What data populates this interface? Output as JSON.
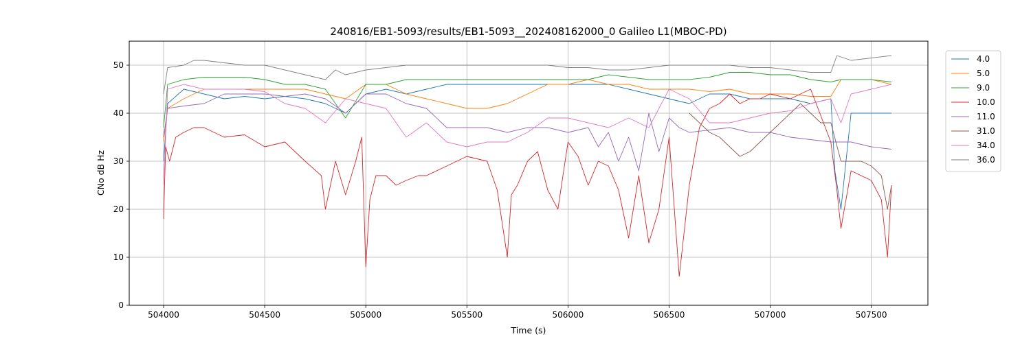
{
  "chart_data": {
    "type": "line",
    "title": "240816/EB1-5093/results/EB1-5093__202408162000_0 Galileo L1(MBOC-PD)",
    "xlabel": "Time (s)",
    "ylabel": "CNo dB Hz",
    "xlim": [
      503830,
      507780
    ],
    "ylim": [
      0,
      55
    ],
    "xticks": [
      504000,
      504500,
      505000,
      505500,
      506000,
      506500,
      507000,
      507500
    ],
    "yticks": [
      0,
      10,
      20,
      30,
      40,
      50
    ],
    "grid": true,
    "legend_position": "upper-right-outside",
    "series": [
      {
        "name": "4.0",
        "color": "#1f77b4",
        "x": [
          504000,
          504020,
          504100,
          504200,
          504300,
          504400,
          504500,
          504600,
          504700,
          504800,
          504900,
          505000,
          505100,
          505200,
          505300,
          505400,
          505500,
          505600,
          505700,
          505800,
          505900,
          506000,
          506100,
          506200,
          506300,
          506400,
          506500,
          506600,
          506700,
          506800,
          506900,
          507000,
          507100,
          507200,
          507300,
          507320,
          507350,
          507400,
          507500,
          507600
        ],
        "y": [
          30,
          42,
          45,
          44,
          43,
          43.5,
          43,
          43.5,
          43,
          42,
          40,
          44,
          45,
          44,
          45,
          46,
          46,
          46,
          46,
          46,
          46,
          46,
          46,
          46,
          45,
          44,
          43,
          42,
          44,
          44,
          43,
          43,
          43,
          42,
          43,
          28,
          20,
          40,
          40,
          40
        ]
      },
      {
        "name": "5.0",
        "color": "#ff7f0e",
        "x": [
          504000,
          504020,
          504100,
          504200,
          504300,
          504400,
          504500,
          504600,
          504700,
          504800,
          504900,
          505000,
          505100,
          505200,
          505300,
          505400,
          505500,
          505600,
          505700,
          505800,
          505900,
          506000,
          506100,
          506200,
          506300,
          506400,
          506500,
          506600,
          506700,
          506800,
          506900,
          507000,
          507100,
          507200,
          507300,
          507350,
          507400,
          507500,
          507600
        ],
        "y": [
          34,
          41,
          43,
          45,
          45,
          45,
          45,
          45,
          45,
          44,
          43,
          46,
          46,
          44,
          43,
          42,
          41,
          41,
          42,
          44,
          46,
          46,
          47,
          46,
          46,
          45,
          45,
          45,
          44.5,
          45,
          44,
          44,
          44,
          43.5,
          43.5,
          47,
          47,
          47,
          46
        ]
      },
      {
        "name": "9.0",
        "color": "#2ca02c",
        "x": [
          504000,
          504020,
          504100,
          504200,
          504300,
          504400,
          504500,
          504600,
          504700,
          504800,
          504900,
          505000,
          505100,
          505200,
          505300,
          505400,
          505500,
          505600,
          505700,
          505800,
          505900,
          506000,
          506100,
          506200,
          506300,
          506400,
          506500,
          506600,
          506700,
          506800,
          506900,
          507000,
          507100,
          507200,
          507300,
          507350,
          507400,
          507500,
          507600
        ],
        "y": [
          37,
          46,
          47,
          47.5,
          47.5,
          47.5,
          47,
          46,
          46,
          45,
          39,
          46,
          46,
          47,
          47,
          47,
          47,
          47,
          47,
          47,
          47,
          47,
          47,
          48,
          47.5,
          47,
          47,
          47,
          47.5,
          48.5,
          48.5,
          48,
          48,
          47,
          46.5,
          47,
          47,
          47,
          46.5
        ]
      },
      {
        "name": "10.0",
        "color": "#d62728",
        "x": [
          504000,
          504010,
          504030,
          504060,
          504100,
          504150,
          504200,
          504300,
          504400,
          504500,
          504600,
          504700,
          504780,
          504800,
          504850,
          504900,
          504950,
          504980,
          505000,
          505020,
          505050,
          505100,
          505150,
          505200,
          505260,
          505300,
          505400,
          505500,
          505600,
          505650,
          505700,
          505720,
          505750,
          505800,
          505850,
          505900,
          505950,
          506000,
          506050,
          506100,
          506150,
          506200,
          506250,
          506300,
          506350,
          506400,
          506450,
          506500,
          506550,
          506600,
          506650,
          506700,
          506750,
          506800,
          506850,
          506900,
          506950,
          507000,
          507100,
          507200,
          507300,
          507330,
          507350,
          507400,
          507500,
          507550,
          507580,
          507600
        ],
        "y": [
          18,
          33,
          30,
          35,
          36,
          37,
          37,
          35,
          35.5,
          33,
          34,
          30,
          27,
          20,
          30,
          23,
          30,
          35,
          8,
          22,
          27,
          27,
          25,
          26,
          27,
          27,
          29,
          31,
          30,
          24,
          10,
          23,
          25,
          30,
          32,
          24,
          20,
          34,
          31,
          25,
          30,
          29,
          24,
          14,
          27,
          13,
          20,
          35,
          6,
          25,
          37,
          41,
          42,
          44,
          42,
          43,
          43,
          44,
          43,
          45,
          34,
          24,
          16,
          28,
          26,
          22,
          10,
          25
        ]
      },
      {
        "name": "11.0",
        "color": "#9467bd",
        "x": [
          504000,
          504020,
          504100,
          504200,
          504300,
          504400,
          504500,
          504600,
          504700,
          504800,
          504900,
          505000,
          505100,
          505200,
          505300,
          505400,
          505500,
          505600,
          505700,
          505800,
          505900,
          506000,
          506100,
          506150,
          506200,
          506250,
          506300,
          506350,
          506400,
          506450,
          506500,
          506550,
          506600,
          506700,
          506800,
          506900,
          507000,
          507100,
          507200,
          507300,
          507400,
          507500,
          507600
        ],
        "y": [
          35,
          41,
          41.5,
          42,
          44,
          44,
          44,
          43.5,
          44,
          43,
          40,
          44,
          44,
          42,
          41,
          37,
          37,
          37,
          36,
          37,
          37,
          36,
          37,
          33,
          36,
          30,
          35,
          28,
          40,
          32,
          39,
          37,
          36,
          36.5,
          37,
          36,
          36,
          35,
          34.5,
          34,
          34,
          33,
          32.5
        ]
      },
      {
        "name": "31.0",
        "color": "#8c564b",
        "x": [
          506600,
          506700,
          506750,
          506800,
          506850,
          506900,
          506950,
          507000,
          507100,
          507150,
          507200,
          507250,
          507300,
          507350,
          507400,
          507450,
          507500,
          507550,
          507580,
          507600
        ],
        "y": [
          40,
          36,
          35,
          33,
          31,
          32,
          34,
          36,
          40,
          42,
          40,
          38,
          38,
          30,
          30,
          30,
          29,
          27,
          20,
          25
        ]
      },
      {
        "name": "34.0",
        "color": "#e377c2",
        "x": [
          504000,
          504020,
          504100,
          504200,
          504300,
          504400,
          504500,
          504600,
          504700,
          504800,
          504900,
          505000,
          505100,
          505200,
          505300,
          505400,
          505500,
          505600,
          505700,
          505800,
          505900,
          506000,
          506100,
          506200,
          506300,
          506400,
          506500,
          506600,
          506700,
          506800,
          506900,
          507000,
          507100,
          507200,
          507300,
          507350,
          507400,
          507500,
          507600
        ],
        "y": [
          25,
          45,
          46,
          45,
          45,
          45,
          44.5,
          42,
          41,
          38,
          43,
          42,
          41,
          35,
          38,
          34,
          33,
          34,
          34,
          36,
          39,
          39,
          38,
          37,
          39,
          37,
          45,
          43,
          38,
          38,
          39,
          40,
          40.5,
          42,
          43,
          38,
          44,
          45,
          46
        ]
      },
      {
        "name": "36.0",
        "color": "#7f7f7f",
        "x": [
          504000,
          504020,
          504100,
          504150,
          504200,
          504300,
          504400,
          504500,
          504600,
          504700,
          504800,
          504850,
          504900,
          505000,
          505100,
          505200,
          505300,
          505400,
          505500,
          505600,
          505700,
          505800,
          505900,
          506000,
          506100,
          506200,
          506300,
          506400,
          506500,
          506600,
          506700,
          506800,
          506900,
          507000,
          507100,
          507200,
          507300,
          507330,
          507400,
          507500,
          507600
        ],
        "y": [
          44,
          49.5,
          50,
          51,
          51,
          50.5,
          50,
          50,
          49,
          48,
          47,
          49,
          48,
          49,
          49.5,
          50,
          50,
          50,
          50,
          50,
          50,
          50,
          50,
          49.5,
          49.5,
          49,
          49,
          49.5,
          50,
          50,
          50,
          50,
          49.5,
          49.5,
          49,
          48.5,
          48.5,
          52,
          51,
          51.5,
          52
        ]
      }
    ]
  }
}
